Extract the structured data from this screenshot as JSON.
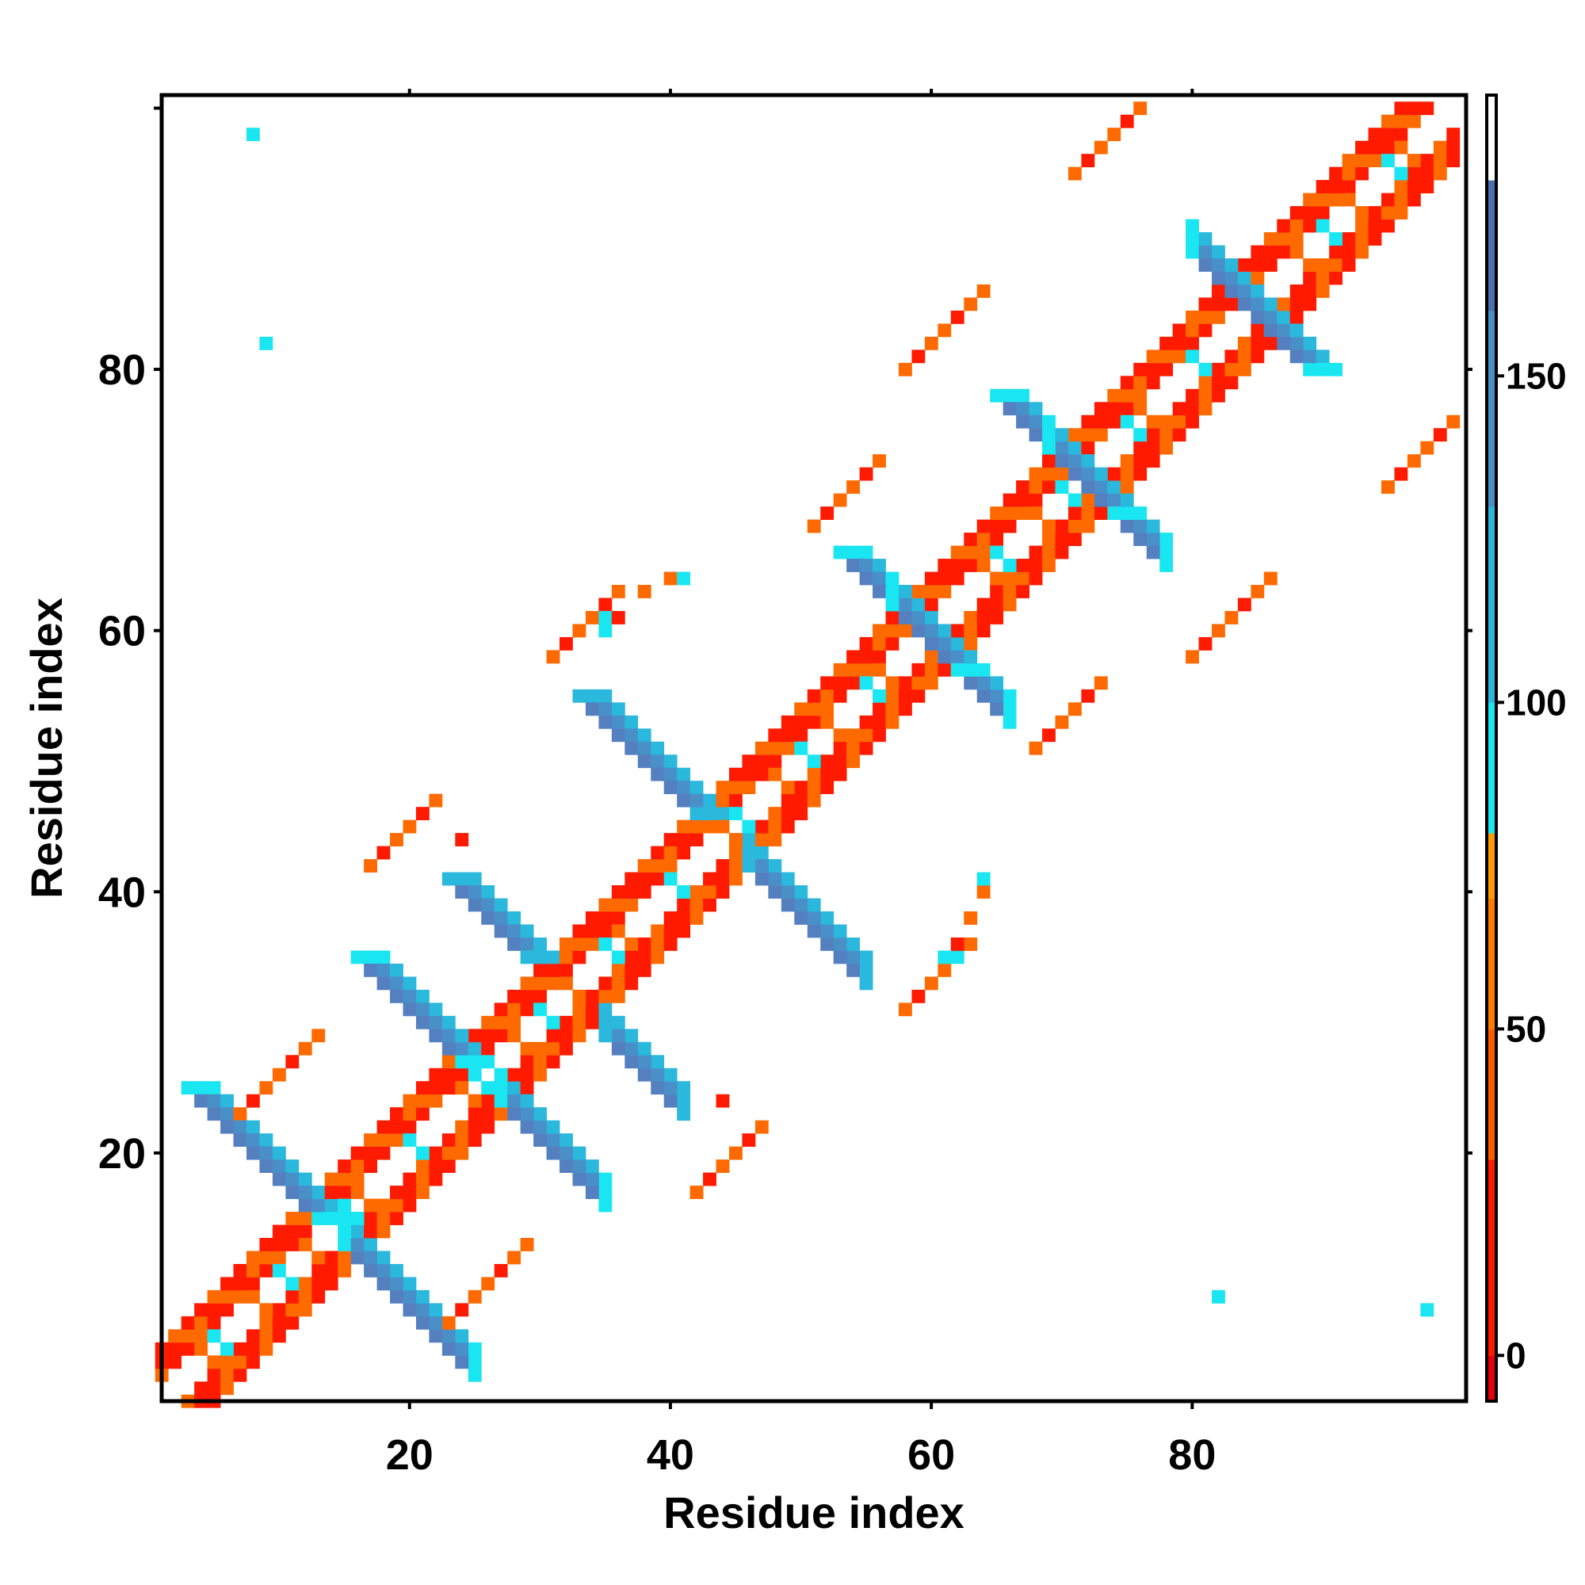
{
  "chart_data": {
    "type": "heatmap",
    "title": "",
    "xlabel": "Residue index",
    "ylabel": "Residue index",
    "xlim": [
      1,
      101
    ],
    "ylim": [
      1,
      101
    ],
    "xticks": [
      20,
      40,
      60,
      80
    ],
    "yticks": [
      20,
      40,
      60,
      80
    ],
    "colorbar": {
      "ticks": [
        0,
        50,
        100,
        150
      ],
      "range": [
        -7,
        193
      ],
      "bands": [
        {
          "from": -7,
          "to": 0,
          "color": "#e8000b"
        },
        {
          "from": 0,
          "to": 30,
          "color": "#ff1a00"
        },
        {
          "from": 30,
          "to": 50,
          "color": "#ff5a00"
        },
        {
          "from": 50,
          "to": 70,
          "color": "#ff7a00"
        },
        {
          "from": 70,
          "to": 80,
          "color": "#ff9a00"
        },
        {
          "from": 80,
          "to": 100,
          "color": "#19e6f0"
        },
        {
          "from": 100,
          "to": 130,
          "color": "#2ab8dd"
        },
        {
          "from": 130,
          "to": 160,
          "color": "#4a90c8"
        },
        {
          "from": 160,
          "to": 180,
          "color": "#4a70b0"
        },
        {
          "from": 180,
          "to": 193,
          "color": "#ffffff"
        }
      ]
    },
    "colors": {
      "red": "#ff1a00",
      "orange": "#ff6a00",
      "amber": "#ff9a00",
      "cyan": "#19e6f0",
      "lightblue": "#2ab8dd",
      "blue": "#4a90c8",
      "darkblue": "#5580c0"
    },
    "diagonal_pattern": {
      "red_offsets": [
        2,
        3,
        4
      ],
      "orange_offsets": [
        1,
        3
      ]
    },
    "antiparallel_strands": [
      {
        "i0": 4,
        "j0": 25,
        "len": 11,
        "edge_color": "cyan"
      },
      {
        "i0": 17,
        "j0": 35,
        "len": 9,
        "edge_color": "cyan"
      },
      {
        "i0": 34,
        "j0": 55,
        "len": 10,
        "edge_color": "lightblue"
      },
      {
        "i0": 54,
        "j0": 66,
        "len": 10,
        "edge_color": "cyan"
      },
      {
        "i0": 66,
        "j0": 78,
        "len": 10,
        "edge_color": "cyan"
      },
      {
        "i0": 81,
        "j0": 89,
        "len": 10,
        "edge_color": "cyan"
      },
      {
        "i0": 24,
        "j0": 41,
        "len": 7,
        "edge_color": "lightblue"
      }
    ],
    "parallel_links": [
      {
        "i0": 7,
        "j0": 23,
        "len": 7
      },
      {
        "i0": 17,
        "j0": 42,
        "len": 6
      },
      {
        "i0": 31,
        "j0": 58,
        "len": 6
      },
      {
        "i0": 51,
        "j0": 68,
        "len": 6
      },
      {
        "i0": 58,
        "j0": 80,
        "len": 7
      },
      {
        "i0": 71,
        "j0": 95,
        "len": 6
      }
    ],
    "isolated_cells": [
      {
        "x": 8,
        "y": 98,
        "c": "cyan"
      },
      {
        "x": 9,
        "y": 82,
        "c": "cyan"
      },
      {
        "x": 82,
        "y": 9,
        "c": "cyan"
      },
      {
        "x": 98,
        "y": 8,
        "c": "cyan"
      },
      {
        "x": 44,
        "y": 24,
        "c": "red"
      },
      {
        "x": 24,
        "y": 44,
        "c": "red"
      },
      {
        "x": 35,
        "y": 60,
        "c": "cyan"
      },
      {
        "x": 35,
        "y": 61,
        "c": "cyan"
      },
      {
        "x": 36,
        "y": 61,
        "c": "red"
      },
      {
        "x": 38,
        "y": 63,
        "c": "orange"
      },
      {
        "x": 40,
        "y": 64,
        "c": "orange"
      },
      {
        "x": 41,
        "y": 64,
        "c": "cyan"
      },
      {
        "x": 61,
        "y": 35,
        "c": "cyan"
      },
      {
        "x": 62,
        "y": 35,
        "c": "cyan"
      },
      {
        "x": 62,
        "y": 36,
        "c": "red"
      },
      {
        "x": 63,
        "y": 38,
        "c": "orange"
      },
      {
        "x": 64,
        "y": 40,
        "c": "orange"
      },
      {
        "x": 64,
        "y": 41,
        "c": "cyan"
      }
    ]
  }
}
